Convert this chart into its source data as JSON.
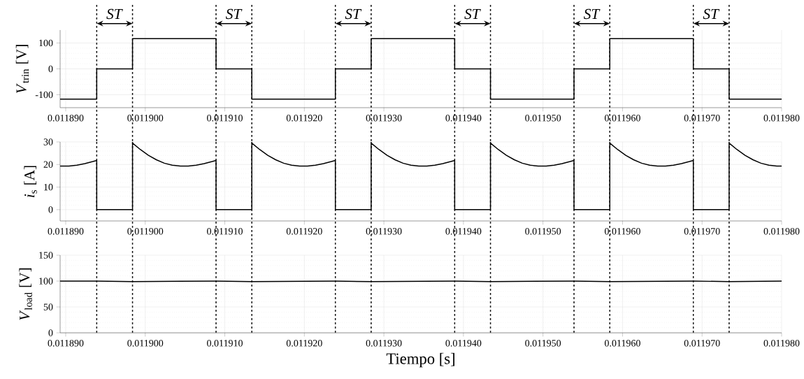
{
  "chart_data": [
    {
      "type": "line",
      "ylabel": "*V*$_{trin}$ [V]",
      "xlim": [
        0.0118893,
        0.01198
      ],
      "ylim": [
        -150,
        150
      ],
      "yticks": [
        -100,
        0,
        100
      ],
      "grid": true,
      "xticks": [
        {
          "value": 0.01189,
          "label": "0.011890"
        },
        {
          "value": 0.0119,
          "label": "0.011900"
        },
        {
          "value": 0.01191,
          "label": "0.011910"
        },
        {
          "value": 0.01192,
          "label": "0.011920"
        },
        {
          "value": 0.01193,
          "label": "0.011930"
        },
        {
          "value": 0.01194,
          "label": "0.011940"
        },
        {
          "value": 0.01195,
          "label": "0.011950"
        },
        {
          "value": 0.01196,
          "label": "0.011960"
        },
        {
          "value": 0.01197,
          "label": "0.011970"
        },
        {
          "value": 0.01198,
          "label": "0.011980"
        }
      ],
      "annotations": [
        "*ST*",
        "*ST*",
        "*ST*",
        "*ST*",
        "*ST*",
        "*ST*"
      ],
      "ref_lines": [
        {
          "axis": "x",
          "value": 0.0118939,
          "line_style": "dotted"
        },
        {
          "axis": "x",
          "value": 0.0118984,
          "line_style": "dotted"
        },
        {
          "axis": "x",
          "value": 0.0119089,
          "line_style": "dotted"
        },
        {
          "axis": "x",
          "value": 0.0119134,
          "line_style": "dotted"
        },
        {
          "axis": "x",
          "value": 0.0119239,
          "line_style": "dotted"
        },
        {
          "axis": "x",
          "value": 0.0119284,
          "line_style": "dotted"
        },
        {
          "axis": "x",
          "value": 0.0119389,
          "line_style": "dotted"
        },
        {
          "axis": "x",
          "value": 0.0119434,
          "line_style": "dotted"
        },
        {
          "axis": "x",
          "value": 0.0119539,
          "line_style": "dotted"
        },
        {
          "axis": "x",
          "value": 0.0119584,
          "line_style": "dotted"
        },
        {
          "axis": "x",
          "value": 0.0119689,
          "line_style": "dotted"
        },
        {
          "axis": "x",
          "value": 0.0119734,
          "line_style": "dotted"
        }
      ],
      "series": [
        {
          "color": "#000000",
          "x": [
            0.0118893,
            0.0118939,
            0.0118939,
            0.0118984,
            0.0118984,
            0.0119089,
            0.0119089,
            0.0119134,
            0.0119134,
            0.0119239,
            0.0119239,
            0.0119284,
            0.0119284,
            0.0119389,
            0.0119389,
            0.0119434,
            0.0119434,
            0.0119539,
            0.0119539,
            0.0119584,
            0.0119584,
            0.0119689,
            0.0119689,
            0.0119734,
            0.0119734,
            0.01198
          ],
          "values": [
            -117,
            -117,
            0,
            0,
            117,
            117,
            0,
            0,
            -117,
            -117,
            0,
            0,
            117,
            117,
            0,
            0,
            -117,
            -117,
            0,
            0,
            117,
            117,
            0,
            0,
            -117,
            -117
          ]
        }
      ]
    },
    {
      "type": "line",
      "ylabel": "*i*$_{s}$ [A]",
      "xlim": [
        0.0118893,
        0.01198
      ],
      "ylim": [
        -5,
        30
      ],
      "yticks": [
        0,
        10,
        20,
        30
      ],
      "grid": true,
      "xticks": [
        {
          "value": 0.01189,
          "label": "0.011890"
        },
        {
          "value": 0.0119,
          "label": "0.011900"
        },
        {
          "value": 0.01191,
          "label": "0.011910"
        },
        {
          "value": 0.01192,
          "label": "0.011920"
        },
        {
          "value": 0.01193,
          "label": "0.011930"
        },
        {
          "value": 0.01194,
          "label": "0.011940"
        },
        {
          "value": 0.01195,
          "label": "0.011950"
        },
        {
          "value": 0.01196,
          "label": "0.011960"
        },
        {
          "value": 0.01197,
          "label": "0.011970"
        },
        {
          "value": 0.01198,
          "label": "0.011980"
        }
      ],
      "ref_lines": [
        {
          "axis": "x",
          "value": 0.0118939,
          "line_style": "dotted"
        },
        {
          "axis": "x",
          "value": 0.0118984,
          "line_style": "dotted"
        },
        {
          "axis": "x",
          "value": 0.0119089,
          "line_style": "dotted"
        },
        {
          "axis": "x",
          "value": 0.0119134,
          "line_style": "dotted"
        },
        {
          "axis": "x",
          "value": 0.0119239,
          "line_style": "dotted"
        },
        {
          "axis": "x",
          "value": 0.0119284,
          "line_style": "dotted"
        },
        {
          "axis": "x",
          "value": 0.0119389,
          "line_style": "dotted"
        },
        {
          "axis": "x",
          "value": 0.0119434,
          "line_style": "dotted"
        },
        {
          "axis": "x",
          "value": 0.0119539,
          "line_style": "dotted"
        },
        {
          "axis": "x",
          "value": 0.0119584,
          "line_style": "dotted"
        },
        {
          "axis": "x",
          "value": 0.0119689,
          "line_style": "dotted"
        },
        {
          "axis": "x",
          "value": 0.0119734,
          "line_style": "dotted"
        }
      ],
      "series": [
        {
          "color": "#000000",
          "x": [
            0.0118893,
            0.0118904,
            0.0118914,
            0.0118924,
            0.0118934,
            0.0118939,
            0.0118939,
            0.0118984,
            0.0118984,
            0.0118994,
            0.0119004,
            0.0119014,
            0.0119024,
            0.0119034,
            0.0119044,
            0.0119054,
            0.0119064,
            0.0119074,
            0.0119084,
            0.0119089,
            0.0119089,
            0.0119134,
            0.0119134,
            0.0119144,
            0.0119154,
            0.0119164,
            0.0119174,
            0.0119184,
            0.0119194,
            0.0119204,
            0.0119214,
            0.0119224,
            0.0119234,
            0.0119239,
            0.0119239,
            0.0119284,
            0.0119284,
            0.0119294,
            0.0119304,
            0.0119314,
            0.0119324,
            0.0119334,
            0.0119344,
            0.0119354,
            0.0119364,
            0.0119374,
            0.0119384,
            0.0119389,
            0.0119389,
            0.0119434,
            0.0119434,
            0.0119444,
            0.0119454,
            0.0119464,
            0.0119474,
            0.0119484,
            0.0119494,
            0.0119504,
            0.0119514,
            0.0119524,
            0.0119534,
            0.0119539,
            0.0119539,
            0.0119584,
            0.0119584,
            0.0119594,
            0.0119604,
            0.0119614,
            0.0119624,
            0.0119634,
            0.0119644,
            0.0119654,
            0.0119664,
            0.0119674,
            0.0119684,
            0.0119689,
            0.0119689,
            0.0119734,
            0.0119734,
            0.0119744,
            0.0119754,
            0.0119764,
            0.0119774,
            0.0119784,
            0.0119794,
            0.01198
          ],
          "values": [
            19.3,
            19.3,
            19.7,
            20.4,
            21.3,
            21.8,
            0,
            0,
            29.5,
            26.6,
            24.1,
            22.1,
            20.6,
            19.7,
            19.3,
            19.3,
            19.7,
            20.4,
            21.3,
            21.8,
            0,
            0,
            29.5,
            26.6,
            24.1,
            22.1,
            20.6,
            19.7,
            19.3,
            19.3,
            19.7,
            20.4,
            21.3,
            21.8,
            0,
            0,
            29.5,
            26.6,
            24.1,
            22.1,
            20.6,
            19.7,
            19.3,
            19.3,
            19.7,
            20.4,
            21.3,
            21.8,
            0,
            0,
            29.5,
            26.6,
            24.1,
            22.1,
            20.6,
            19.7,
            19.3,
            19.3,
            19.7,
            20.4,
            21.3,
            21.8,
            0,
            0,
            29.5,
            26.6,
            24.1,
            22.1,
            20.6,
            19.7,
            19.3,
            19.3,
            19.7,
            20.4,
            21.3,
            21.8,
            0,
            0,
            29.5,
            26.6,
            24.1,
            22.1,
            20.6,
            19.7,
            19.3,
            19.3
          ]
        }
      ]
    },
    {
      "type": "line",
      "ylabel": "*V*$_{load}$ [V]",
      "xlabel": "Tiempo [s]",
      "xlim": [
        0.0118893,
        0.01198
      ],
      "ylim": [
        0,
        150
      ],
      "yticks": [
        0,
        50,
        100,
        150
      ],
      "grid": true,
      "xticks": [
        {
          "value": 0.01189,
          "label": "0.011890"
        },
        {
          "value": 0.0119,
          "label": "0.011900"
        },
        {
          "value": 0.01191,
          "label": "0.011910"
        },
        {
          "value": 0.01192,
          "label": "0.011920"
        },
        {
          "value": 0.01193,
          "label": "0.011930"
        },
        {
          "value": 0.01194,
          "label": "0.011940"
        },
        {
          "value": 0.01195,
          "label": "0.011950"
        },
        {
          "value": 0.01196,
          "label": "0.011960"
        },
        {
          "value": 0.01197,
          "label": "0.011970"
        },
        {
          "value": 0.01198,
          "label": "0.011980"
        }
      ],
      "ref_lines": [
        {
          "axis": "x",
          "value": 0.0118939,
          "line_style": "dotted"
        },
        {
          "axis": "x",
          "value": 0.0118984,
          "line_style": "dotted"
        },
        {
          "axis": "x",
          "value": 0.0119089,
          "line_style": "dotted"
        },
        {
          "axis": "x",
          "value": 0.0119134,
          "line_style": "dotted"
        },
        {
          "axis": "x",
          "value": 0.0119239,
          "line_style": "dotted"
        },
        {
          "axis": "x",
          "value": 0.0119284,
          "line_style": "dotted"
        },
        {
          "axis": "x",
          "value": 0.0119389,
          "line_style": "dotted"
        },
        {
          "axis": "x",
          "value": 0.0119434,
          "line_style": "dotted"
        },
        {
          "axis": "x",
          "value": 0.0119539,
          "line_style": "dotted"
        },
        {
          "axis": "x",
          "value": 0.0119584,
          "line_style": "dotted"
        },
        {
          "axis": "x",
          "value": 0.0119689,
          "line_style": "dotted"
        },
        {
          "axis": "x",
          "value": 0.0119734,
          "line_style": "dotted"
        }
      ],
      "series": [
        {
          "color": "#000000",
          "x": [
            0.0118893,
            0.0118939,
            0.0118984,
            0.0119089,
            0.0119134,
            0.0119239,
            0.0119284,
            0.0119389,
            0.0119434,
            0.0119539,
            0.0119584,
            0.0119689,
            0.0119734,
            0.01198
          ],
          "values": [
            100,
            100,
            99,
            100,
            99,
            100,
            99,
            100,
            99,
            100,
            99,
            100,
            99,
            100
          ]
        }
      ]
    }
  ]
}
